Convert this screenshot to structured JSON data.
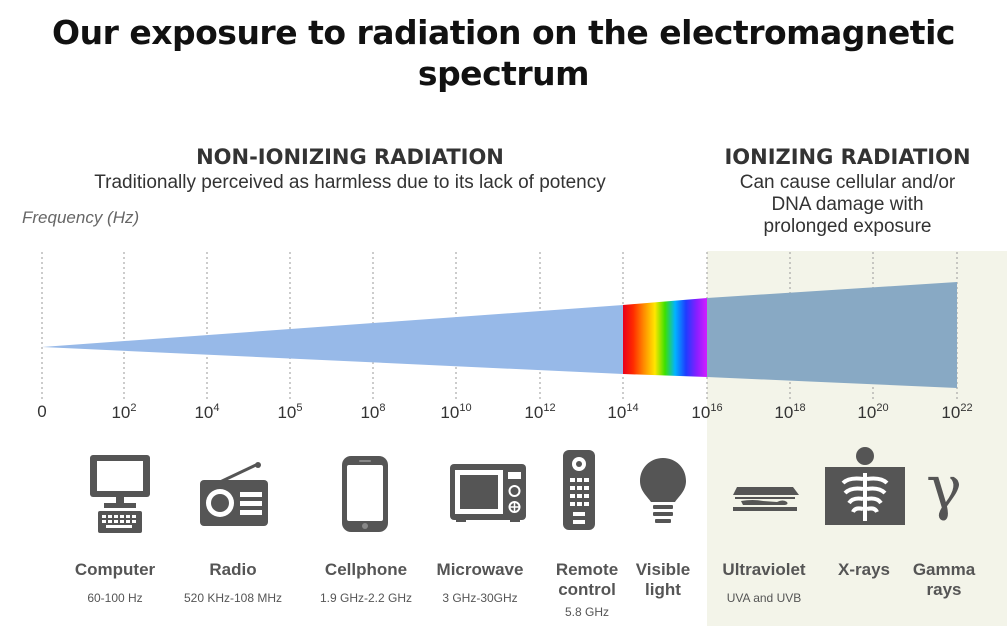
{
  "title_line1": "Our exposure to radiation on the electromagnetic",
  "title_line2": "spectrum",
  "non_ionizing": {
    "heading": "NON-IONIZING RADIATION",
    "subtitle": "Traditionally perceived as harmless due to its lack of potency"
  },
  "ionizing": {
    "heading": "IONIZING RADIATION",
    "subtitle_lines": [
      "Can cause cellular and/or",
      "DNA damage with",
      "prolonged exposure"
    ]
  },
  "axis_label": "Frequency (Hz)",
  "ticks": [
    {
      "base": "0",
      "exp": ""
    },
    {
      "base": "10",
      "exp": "2"
    },
    {
      "base": "10",
      "exp": "4"
    },
    {
      "base": "10",
      "exp": "5"
    },
    {
      "base": "10",
      "exp": "8"
    },
    {
      "base": "10",
      "exp": "10"
    },
    {
      "base": "10",
      "exp": "12"
    },
    {
      "base": "10",
      "exp": "14"
    },
    {
      "base": "10",
      "exp": "16"
    },
    {
      "base": "10",
      "exp": "18"
    },
    {
      "base": "10",
      "exp": "20"
    },
    {
      "base": "10",
      "exp": "22"
    }
  ],
  "sources": [
    {
      "name": [
        "Computer"
      ],
      "range": "60-100 Hz",
      "icon": "computer-icon"
    },
    {
      "name": [
        "Radio"
      ],
      "range": "520 KHz-108 MHz",
      "icon": "radio-icon"
    },
    {
      "name": [
        "Cellphone"
      ],
      "range": "1.9 GHz-2.2 GHz",
      "icon": "cellphone-icon"
    },
    {
      "name": [
        "Microwave"
      ],
      "range": "3 GHz-30GHz",
      "icon": "microwave-icon"
    },
    {
      "name": [
        "Remote",
        "control"
      ],
      "range": "5.8 GHz",
      "icon": "remote-control-icon"
    },
    {
      "name": [
        "Visible",
        "light"
      ],
      "range": "",
      "icon": "light-bulb-icon"
    },
    {
      "name": [
        "Ultraviolet"
      ],
      "range": "UVA and UVB",
      "icon": "tanning-bed-icon"
    },
    {
      "name": [
        "X-rays"
      ],
      "range": "",
      "icon": "xray-icon"
    },
    {
      "name": [
        "Gamma",
        "rays"
      ],
      "range": "",
      "icon": "gamma-icon"
    }
  ],
  "colors": {
    "non_ionizing_wedge": "#97b9e8",
    "ionizing_wedge": "#88a9c4",
    "ionizing_background": "#f3f4e9",
    "icon_gray": "#555555"
  }
}
